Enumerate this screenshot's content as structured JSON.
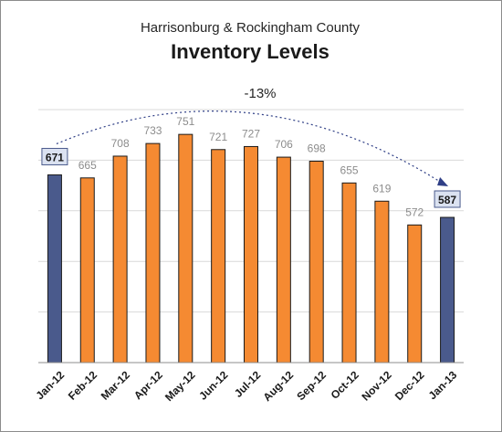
{
  "chart_data": {
    "type": "bar",
    "subtitle": "Harrisonburg & Rockingham County",
    "title": "Inventory Levels",
    "categories": [
      "Jan-12",
      "Feb-12",
      "Mar-12",
      "Apr-12",
      "May-12",
      "Jun-12",
      "Jul-12",
      "Aug-12",
      "Sep-12",
      "Oct-12",
      "Nov-12",
      "Dec-12",
      "Jan-13"
    ],
    "values": [
      671,
      665,
      708,
      733,
      751,
      721,
      727,
      706,
      698,
      655,
      619,
      572,
      587
    ],
    "highlighted": [
      true,
      false,
      false,
      false,
      false,
      false,
      false,
      false,
      false,
      false,
      false,
      false,
      true
    ],
    "ylim": [
      300,
      800
    ],
    "grid": true,
    "annotation": "-13%",
    "colors": {
      "bar": "#f58a32",
      "highlight_bar": "#4a5a8c",
      "bar_border": "#1a1a1a",
      "label": "#8c8c8c",
      "highlight_label_bg": "#dbe2f1",
      "highlight_label_border": "#4a5a8c",
      "annotation_arrow": "#2f3f86"
    }
  }
}
